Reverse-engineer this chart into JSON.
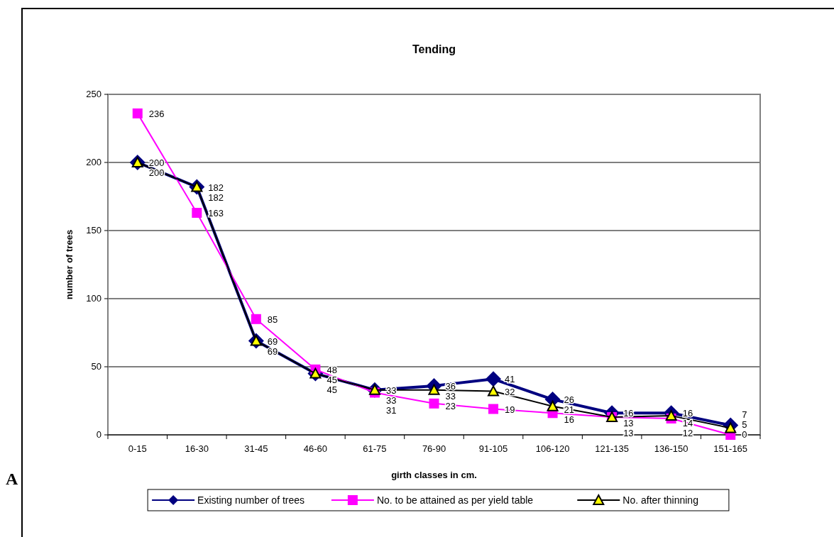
{
  "chart_data": {
    "type": "line",
    "title": "Tending",
    "xlabel": "girth classes in cm.",
    "ylabel": "number of trees",
    "annotations": [
      "A"
    ],
    "categories": [
      "0-15",
      "16-30",
      "31-45",
      "46-60",
      "61-75",
      "76-90",
      "91-105",
      "106-120",
      "121-135",
      "136-150",
      "151-165"
    ],
    "series": [
      {
        "name": "Existing number of trees",
        "color": "#000080",
        "marker": "diamond",
        "values": [
          200,
          182,
          69,
          45,
          33,
          36,
          41,
          26,
          16,
          16,
          7
        ]
      },
      {
        "name": "No. to be attained as per yield table",
        "color": "#ff00ff",
        "marker": "square",
        "values": [
          236,
          163,
          85,
          48,
          31,
          23,
          19,
          16,
          13,
          12,
          0
        ]
      },
      {
        "name": "No. after thinning",
        "color": "#000000",
        "marker": "triangle",
        "values": [
          200,
          182,
          69,
          45,
          33,
          33,
          32,
          21,
          13,
          14,
          5
        ]
      }
    ],
    "ylim": [
      0,
      250
    ],
    "yticks": [
      0,
      50,
      100,
      150,
      200,
      250
    ],
    "grid": "y",
    "legend": "bottom",
    "data_labels": true
  }
}
